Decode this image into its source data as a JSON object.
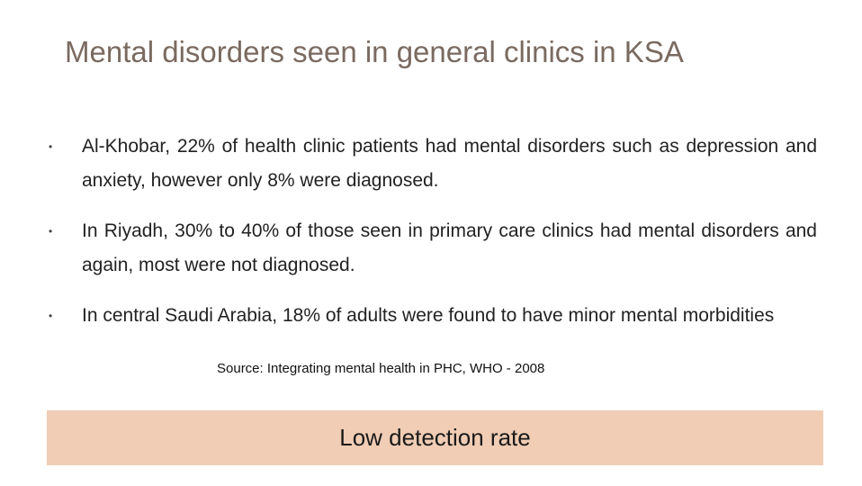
{
  "slide": {
    "title": "Mental disorders seen in general clinics in KSA",
    "bullets": [
      {
        "marker": "•",
        "text": "Al-Khobar, 22% of health clinic patients had mental disorders such as depression and anxiety, however only 8% were diagnosed."
      },
      {
        "marker": "•",
        "text": "In Riyadh, 30% to 40% of those seen in primary care clinics had mental disorders and again, most were not diagnosed."
      },
      {
        "marker": "•",
        "text": "In central Saudi Arabia, 18% of adults were found to have minor mental morbidities"
      }
    ],
    "source": "Source: Integrating mental health in PHC, WHO - 2008",
    "highlight": "Low detection rate",
    "colors": {
      "title": "#7a6a60",
      "highlight_background": "#f0cdb4"
    }
  }
}
